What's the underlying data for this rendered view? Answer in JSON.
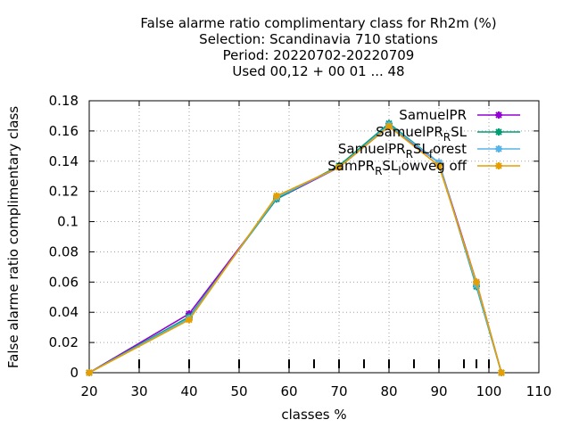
{
  "chart_data": {
    "type": "line",
    "title_lines": [
      "False alarme ratio complimentary class  for Rh2m (%)",
      "Selection: Scandinavia    710 stations",
      "Period: 20220702-20220709",
      "Used  00,12  + 00 01 ... 48"
    ],
    "xlabel": "classes %",
    "ylabel": "False alarme ratio complimentary class",
    "xlim": [
      20,
      110
    ],
    "ylim": [
      0,
      0.18
    ],
    "x_ticks": [
      "20",
      "30",
      "40",
      "50",
      "60",
      "70",
      "80",
      "90",
      "100",
      "110"
    ],
    "y_ticks": [
      "0",
      "0.02",
      "0.04",
      "0.06",
      "0.08",
      "0.1",
      "0.12",
      "0.14",
      "0.16",
      "0.18"
    ],
    "class_marks": [
      30,
      40,
      50,
      60,
      65,
      70,
      75,
      80,
      85,
      90,
      95,
      97.5,
      100
    ],
    "grid": true,
    "legend_position": "top-right",
    "series": [
      {
        "name": "SamuelPR",
        "color": "#9400d3",
        "x": [
          20,
          40,
          57.5,
          70,
          80,
          90,
          97.5,
          102.5
        ],
        "values": [
          0.0,
          0.039,
          0.115,
          0.136,
          0.163,
          0.139,
          0.06,
          0.0
        ]
      },
      {
        "name": "SamuelPR_RSL",
        "color": "#009e73",
        "x": [
          20,
          40,
          57.5,
          70,
          80,
          90,
          97.5,
          102.5
        ],
        "values": [
          0.0,
          0.037,
          0.115,
          0.137,
          0.165,
          0.139,
          0.057,
          0.0
        ]
      },
      {
        "name": "SamuelPR_RSL_forest",
        "color": "#56b4e9",
        "x": [
          20,
          40,
          57.5,
          70,
          80,
          90,
          97.5,
          102.5
        ],
        "values": [
          0.0,
          0.036,
          0.116,
          0.136,
          0.164,
          0.139,
          0.058,
          0.0
        ]
      },
      {
        "name": "SamPR_RSL_lowveg_off",
        "color": "#e69f00",
        "x": [
          20,
          40,
          57.5,
          70,
          80,
          90,
          97.5,
          102.5
        ],
        "values": [
          0.0,
          0.035,
          0.117,
          0.136,
          0.163,
          0.137,
          0.06,
          0.0
        ]
      }
    ],
    "legend_labels": [
      {
        "base": "SamuelPR",
        "sub1": "",
        "mid": "",
        "sub2": "",
        "tail": ""
      },
      {
        "base": "SamuelPR",
        "sub1": "R",
        "mid": "SL",
        "sub2": "",
        "tail": ""
      },
      {
        "base": "SamuelPR",
        "sub1": "R",
        "mid": "SL",
        "sub2": "f",
        "tail": "orest"
      },
      {
        "base": "SamPR",
        "sub1": "R",
        "mid": "SL",
        "sub2": "l",
        "tail": "owveg off"
      }
    ]
  }
}
